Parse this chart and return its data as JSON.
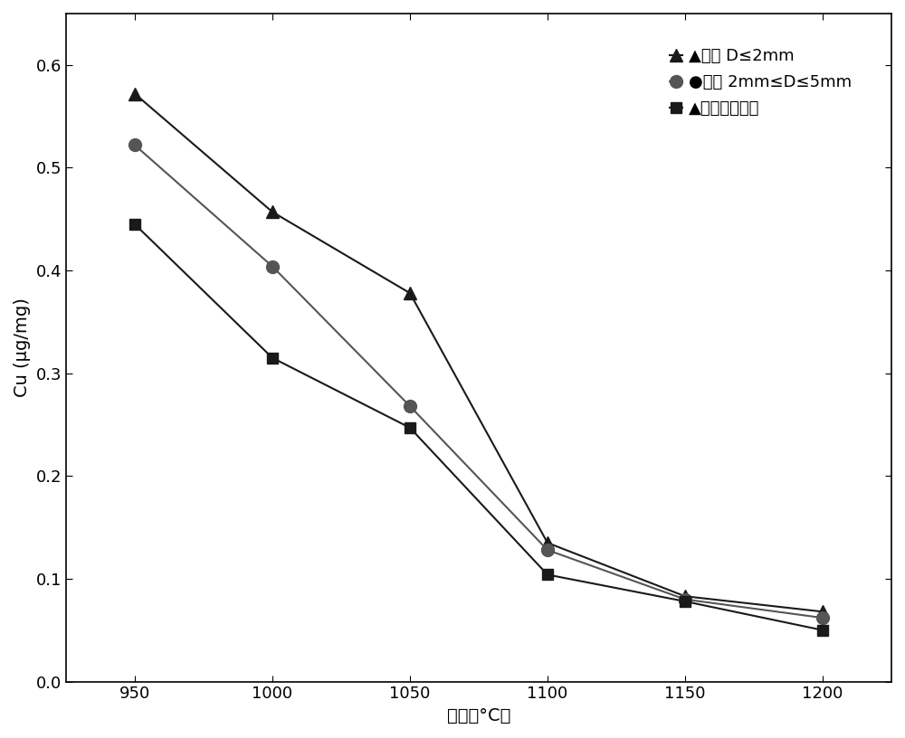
{
  "x": [
    950,
    1000,
    1050,
    1100,
    1150,
    1200
  ],
  "series": [
    {
      "label": "▲代表 D≤2mm",
      "values": [
        0.572,
        0.457,
        0.378,
        0.135,
        0.083,
        0.068
      ],
      "marker": "^",
      "markersize": 10,
      "color": "#1a1a1a"
    },
    {
      "label": "●代表 2mm≤D≤5mm",
      "values": [
        0.522,
        0.404,
        0.268,
        0.128,
        0.08,
        0.062
      ],
      "marker": "o",
      "markersize": 10,
      "color": "#555555"
    },
    {
      "label": "▲代表完整颗粒",
      "values": [
        0.445,
        0.315,
        0.247,
        0.104,
        0.078,
        0.05
      ],
      "marker": "s",
      "markersize": 9,
      "color": "#1a1a1a"
    }
  ],
  "xlabel": "温度（°C）",
  "ylabel": "Cu (μg/mg)",
  "xlim": [
    925,
    1225
  ],
  "ylim": [
    0.0,
    0.65
  ],
  "xticks": [
    950,
    1000,
    1050,
    1100,
    1150,
    1200
  ],
  "yticks": [
    0.0,
    0.1,
    0.2,
    0.3,
    0.4,
    0.5,
    0.6
  ],
  "legend_fontsize": 13,
  "axis_fontsize": 14,
  "tick_fontsize": 13,
  "background_color": "#ffffff",
  "linewidth": 1.5
}
